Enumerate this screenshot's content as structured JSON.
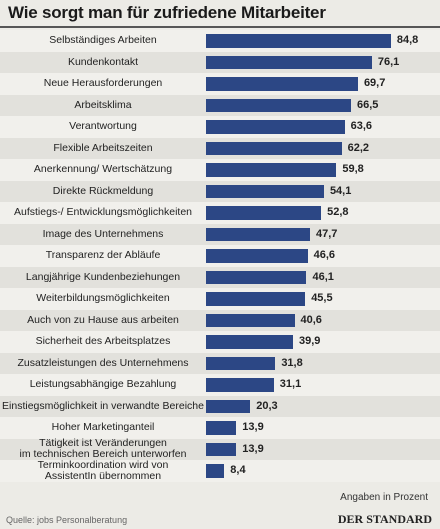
{
  "chart_data": {
    "type": "bar",
    "orientation": "horizontal",
    "title": "Wie sorgt man für zufriedene Mitarbeiter",
    "categories": [
      "Selbständiges Arbeiten",
      "Kundenkontakt",
      "Neue Herausforderungen",
      "Arbeitsklima",
      "Verantwortung",
      "Flexible Arbeitszeiten",
      "Anerkennung/ Wertschätzung",
      "Direkte Rückmeldung",
      "Aufstiegs-/ Entwicklungsmöglichkeiten",
      "Image des Unternehmens",
      "Transparenz der Abläufe",
      "Langjährige Kundenbeziehungen",
      "Weiterbildungsmöglichkeiten",
      "Auch von zu Hause aus arbeiten",
      "Sicherheit des Arbeitsplatzes",
      "Zusatzleistungen des Unternehmens",
      "Leistungsabhängige Bezahlung",
      "Einstiegsmöglichkeit in verwandte Bereiche",
      "Hoher Marketinganteil",
      "Tätigkeit ist Veränderungen\nim technischen Bereich unterworfen",
      "Terminkoordination wird von\nAssistentIn übernommen"
    ],
    "values": [
      84.8,
      76.1,
      69.7,
      66.5,
      63.6,
      62.2,
      59.8,
      54.1,
      52.8,
      47.7,
      46.6,
      46.1,
      45.5,
      40.6,
      39.9,
      31.8,
      31.1,
      20.3,
      13.9,
      13.9,
      8.4
    ],
    "value_labels": [
      "84,8",
      "76,1",
      "69,7",
      "66,5",
      "63,6",
      "62,2",
      "59,8",
      "54,1",
      "52,8",
      "47,7",
      "46,6",
      "46,1",
      "45,5",
      "40,6",
      "39,9",
      "31,8",
      "31,1",
      "20,3",
      "13,9",
      "13,9",
      "8,4"
    ],
    "color": "#2c4785",
    "annotation": "Angaben in Prozent",
    "source": "Quelle: jobs Personalberatung",
    "brand": "DER STANDARD"
  }
}
